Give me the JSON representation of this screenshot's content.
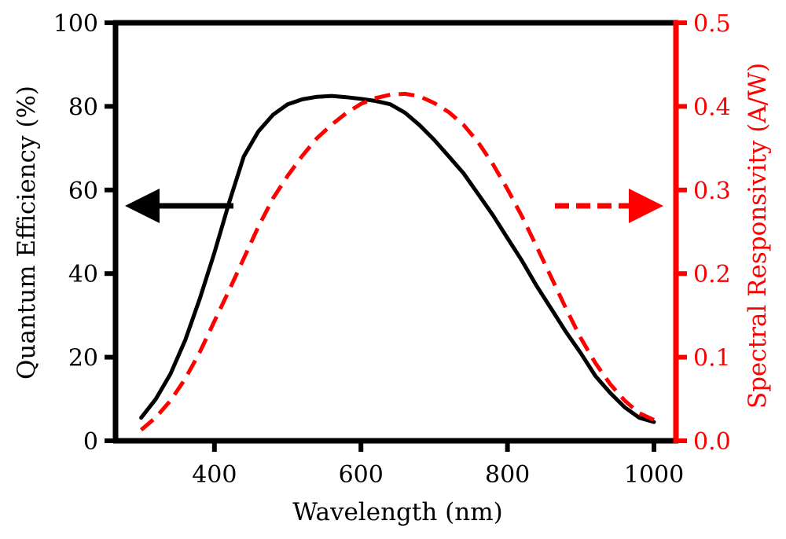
{
  "chart_data": {
    "type": "line",
    "xlabel": "Wavelength (nm)",
    "ylabel": "Quantum Efficiency (%)",
    "y2label": "Spectral Responsivity (A/W)",
    "xlim": [
      265,
      1030
    ],
    "ylim": [
      0,
      100
    ],
    "y2lim": [
      0,
      0.5
    ],
    "x_ticks": [
      400,
      600,
      800,
      1000
    ],
    "x_tick_labels": [
      "400",
      "600",
      "800",
      "1000"
    ],
    "y_ticks": [
      0,
      20,
      40,
      60,
      80,
      100
    ],
    "y_tick_labels": [
      "0",
      "20",
      "40",
      "60",
      "80",
      "100"
    ],
    "y2_ticks": [
      0,
      0.1,
      0.2,
      0.3,
      0.4,
      0.5
    ],
    "y2_tick_labels": [
      "0.0",
      "0.1",
      "0.2",
      "0.3",
      "0.4",
      "0.5"
    ],
    "colors": {
      "left_axis": "#000000",
      "right_axis": "#ff0000"
    },
    "series": [
      {
        "axis": "left",
        "style": "solid",
        "color": "#000000",
        "x": [
          300,
          320,
          340,
          360,
          380,
          400,
          420,
          440,
          460,
          480,
          500,
          520,
          540,
          560,
          580,
          600,
          620,
          640,
          660,
          680,
          700,
          720,
          740,
          760,
          780,
          800,
          820,
          840,
          860,
          880,
          900,
          920,
          940,
          960,
          980,
          1000
        ],
        "y": [
          5.5,
          10,
          16,
          24,
          34,
          45,
          57,
          68,
          74,
          78,
          80.5,
          81.7,
          82.3,
          82.5,
          82.2,
          81.8,
          81.3,
          80.5,
          78.5,
          75.5,
          72,
          68,
          64,
          59,
          54,
          48.5,
          43,
          37,
          31.5,
          26,
          21,
          15.5,
          11.5,
          8,
          5.5,
          4.5
        ]
      },
      {
        "axis": "right",
        "style": "dashed",
        "color": "#ff0000",
        "x": [
          300,
          320,
          340,
          360,
          380,
          400,
          420,
          440,
          460,
          480,
          500,
          520,
          540,
          560,
          580,
          600,
          620,
          640,
          660,
          680,
          700,
          720,
          740,
          760,
          780,
          800,
          820,
          840,
          860,
          880,
          900,
          920,
          940,
          960,
          980,
          1000
        ],
        "y": [
          0.013,
          0.028,
          0.048,
          0.074,
          0.106,
          0.143,
          0.18,
          0.218,
          0.256,
          0.29,
          0.317,
          0.341,
          0.362,
          0.378,
          0.392,
          0.403,
          0.41,
          0.414,
          0.415,
          0.412,
          0.404,
          0.393,
          0.378,
          0.357,
          0.331,
          0.301,
          0.268,
          0.232,
          0.195,
          0.158,
          0.123,
          0.093,
          0.068,
          0.048,
          0.033,
          0.025
        ]
      }
    ],
    "annotations": [
      {
        "type": "arrow",
        "direction": "left",
        "color": "#000000",
        "style": "solid",
        "points_to": "left_axis"
      },
      {
        "type": "arrow",
        "direction": "right",
        "color": "#ff0000",
        "style": "dashed",
        "points_to": "right_axis"
      }
    ]
  }
}
